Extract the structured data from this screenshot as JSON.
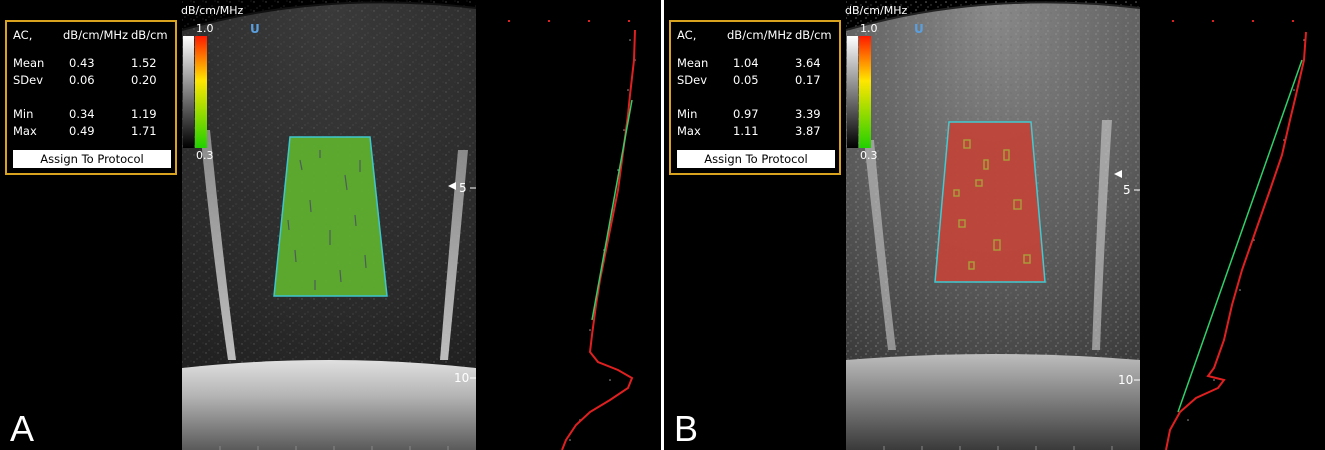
{
  "panels": [
    {
      "letter": "A",
      "colorbar": {
        "title": "dB/cm/MHz",
        "max_label": "1.0",
        "min_label": "0.3"
      },
      "stats": {
        "header": [
          "AC,",
          "dB/cm/MHz",
          "dB/cm"
        ],
        "mean": [
          "Mean",
          "0.43",
          "1.52"
        ],
        "sdev": [
          "SDev",
          "0.06",
          "0.20"
        ],
        "min": [
          "Min",
          "0.34",
          "1.19"
        ],
        "max": [
          "Max",
          "0.49",
          "1.71"
        ],
        "button": "Assign To Protocol"
      },
      "depth_labels": {
        "d5": "5",
        "d10": "10"
      },
      "roi_color": "#5fae2e",
      "icon": "U"
    },
    {
      "letter": "B",
      "colorbar": {
        "title": "dB/cm/MHz",
        "max_label": "1.0",
        "min_label": "0.3"
      },
      "stats": {
        "header": [
          "AC,",
          "dB/cm/MHz",
          "dB/cm"
        ],
        "mean": [
          "Mean",
          "1.04",
          "3.64"
        ],
        "sdev": [
          "SDev",
          "0.05",
          "0.17"
        ],
        "min": [
          "Min",
          "0.97",
          "3.39"
        ],
        "max": [
          "Max",
          "1.11",
          "3.87"
        ],
        "button": "Assign To Protocol"
      },
      "depth_labels": {
        "d5": "5",
        "d10": "10"
      },
      "roi_color": "#c0453a",
      "icon": "U"
    }
  ],
  "colors": {
    "stats_border": "#d9a320",
    "roi_outline": "#3fd0d8",
    "fit_line": "#2fd06a",
    "rf_trace": "#e02020"
  }
}
